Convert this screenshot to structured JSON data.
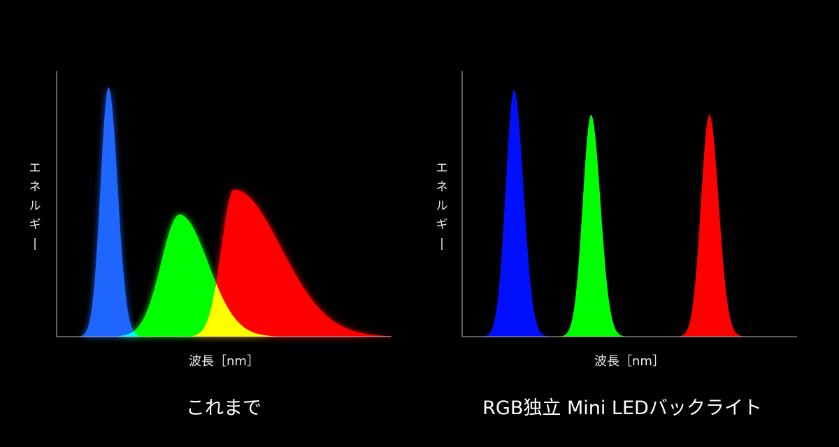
{
  "chart_data": [
    {
      "type": "area",
      "title": "これまで",
      "ylabel": "エネルギー",
      "xlabel": "波長［nm］",
      "series": [
        {
          "color": "#1f66ff",
          "peak": 1.0,
          "center": 0.155,
          "sigma_left": 0.024,
          "sigma_right": 0.027
        },
        {
          "color": "#00ff00",
          "peak": 0.49,
          "center": 0.367,
          "sigma_left": 0.055,
          "sigma_right": 0.085
        },
        {
          "color": "#ff0000",
          "peak": 0.59,
          "center": 0.53,
          "sigma_left": 0.038,
          "sigma_right": 0.14
        }
      ],
      "overlap_color": "#ffff00",
      "underlap_color": "#00ffff",
      "glow": true
    },
    {
      "type": "area",
      "title": "RGB独立 Mini LEDバックライト",
      "ylabel": "エネルギー",
      "xlabel": "波長［nm］",
      "series": [
        {
          "color": "#0010ff",
          "peak": 0.99,
          "center": 0.155,
          "sigma_left": 0.025,
          "sigma_right": 0.028
        },
        {
          "color": "#00ff00",
          "peak": 0.89,
          "center": 0.385,
          "sigma_left": 0.025,
          "sigma_right": 0.028
        },
        {
          "color": "#ff0000",
          "peak": 0.89,
          "center": 0.738,
          "sigma_left": 0.025,
          "sigma_right": 0.028
        }
      ],
      "glow": false
    }
  ]
}
